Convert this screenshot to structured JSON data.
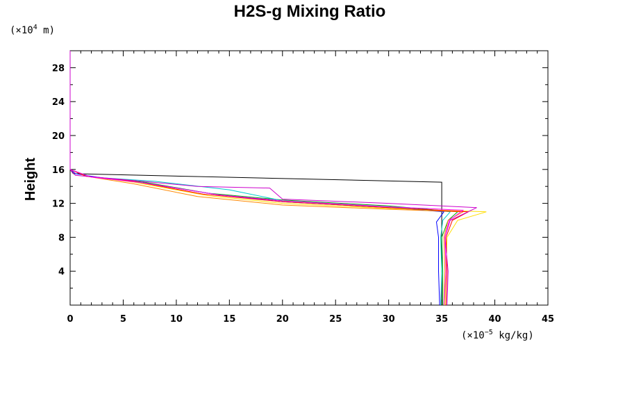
{
  "chart_data": {
    "type": "line",
    "title": "H2S-g Mixing Ratio",
    "ylabel": "Height",
    "y_unit": {
      "prefix": "(×10",
      "exponent": "4",
      "suffix": " m)"
    },
    "x_unit": {
      "prefix": "(×10",
      "exponent": "−5",
      "suffix": " kg/kg)"
    },
    "xlim": [
      0,
      45
    ],
    "ylim": [
      0,
      30
    ],
    "xticks": [
      0,
      5,
      10,
      15,
      20,
      25,
      30,
      35,
      40,
      45
    ],
    "xtick_labels": [
      "0",
      "5",
      "10",
      "15",
      "20",
      "25",
      "30",
      "35",
      "40",
      "45"
    ],
    "yticks": [
      4,
      8,
      12,
      16,
      20,
      24,
      28
    ],
    "ytick_labels": [
      "4",
      "8",
      "12",
      "16",
      "20",
      "24",
      "28"
    ],
    "grid": false,
    "series": [
      {
        "color": "#000000",
        "x": [
          35,
          35,
          35,
          35,
          35,
          35,
          35,
          0.3,
          0
        ],
        "y": [
          0,
          4,
          7.5,
          9.5,
          11,
          13,
          14.5,
          15.5,
          16
        ]
      },
      {
        "color": "#0000ff",
        "x": [
          34.8,
          34.7,
          34.7,
          34.5,
          35.2,
          30,
          20,
          13.5,
          7,
          2.5,
          0.5,
          0
        ],
        "y": [
          0,
          4,
          8,
          9.8,
          11,
          11.5,
          12.2,
          13.1,
          14.4,
          15.1,
          15.5,
          16
        ]
      },
      {
        "color": "#00aa00",
        "x": [
          35.1,
          35.1,
          35,
          35.6,
          36.5,
          30,
          20,
          13,
          7,
          2,
          0
        ],
        "y": [
          0,
          4,
          8,
          10,
          11,
          11.7,
          12.4,
          13.2,
          14.5,
          15.1,
          16
        ]
      },
      {
        "color": "#00cccc",
        "x": [
          34.9,
          35,
          34.9,
          35.1,
          35.8,
          30,
          20,
          15,
          8,
          2,
          0
        ],
        "y": [
          0,
          4,
          8,
          10,
          11,
          11.6,
          12.3,
          13.6,
          14.6,
          15.1,
          16
        ]
      },
      {
        "color": "#ffdd00",
        "x": [
          35.3,
          35.4,
          35.5,
          36.5,
          39.2,
          30,
          20,
          13,
          6,
          1.5,
          0
        ],
        "y": [
          0,
          4,
          8,
          10,
          11,
          11.4,
          12,
          12.9,
          14.5,
          15.2,
          16
        ]
      },
      {
        "color": "#ff8800",
        "x": [
          35.2,
          35.3,
          35.2,
          35.6,
          37,
          30,
          20,
          12,
          6,
          1.5,
          0
        ],
        "y": [
          0,
          4,
          8,
          10,
          11,
          11.3,
          11.8,
          12.8,
          14.3,
          15.2,
          16
        ]
      },
      {
        "color": "#ff0000",
        "x": [
          35.4,
          35.5,
          35.4,
          36,
          37.5,
          30,
          20,
          12.5,
          6,
          1.5,
          0
        ],
        "y": [
          0,
          4,
          8,
          10,
          11,
          11.5,
          12.2,
          13.1,
          14.6,
          15.2,
          16
        ]
      },
      {
        "color": "#cc00cc",
        "x": [
          35.5,
          35.6,
          35.3,
          35.8,
          38.3,
          30,
          20,
          18.8,
          12,
          5,
          0.5,
          0,
          0
        ],
        "y": [
          0,
          4,
          8,
          10,
          11.5,
          12,
          12.5,
          13.8,
          14,
          14.8,
          15.3,
          16,
          30
        ]
      },
      {
        "color": "#ff00ff",
        "x": [
          35.2,
          35.4,
          35.3,
          35.7,
          37,
          30,
          20,
          14,
          7,
          2,
          0
        ],
        "y": [
          0,
          4,
          8,
          10,
          11.2,
          11.6,
          12.3,
          13,
          14.4,
          15.1,
          16
        ]
      }
    ]
  }
}
